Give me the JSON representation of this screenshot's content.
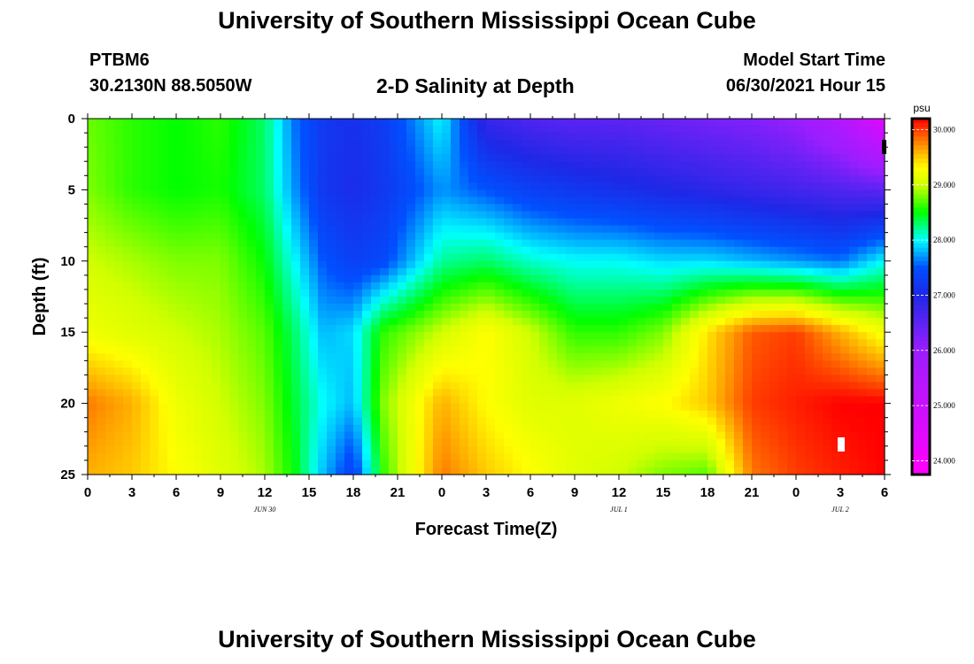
{
  "header": {
    "title": "University of Southern Mississippi Ocean Cube",
    "station_id": "PTBM6",
    "station_coords": "30.2130N  88.5050W",
    "plot_title": "2-D Salinity at Depth",
    "model_start_label": "Model Start Time",
    "model_start_value": "06/30/2021 Hour 15"
  },
  "footer": {
    "title": "University of Southern Mississippi Ocean Cube"
  },
  "chart_data": {
    "type": "heatmap",
    "title": "2-D Salinity at Depth",
    "xlabel": "Forecast Time(Z)",
    "ylabel": "Depth (ft)",
    "x_range_hours": [
      0,
      54
    ],
    "ylim": [
      0,
      25
    ],
    "x_ticks": [
      "0",
      "3",
      "6",
      "9",
      "12",
      "15",
      "18",
      "21",
      "0",
      "3",
      "6",
      "9",
      "12",
      "15",
      "18",
      "21",
      "0",
      "3",
      "6"
    ],
    "y_ticks": [
      "0",
      "5",
      "10",
      "15",
      "20",
      "25"
    ],
    "date_labels": [
      {
        "text": "JUN 30",
        "hour": 12
      },
      {
        "text": "JUL 1",
        "hour": 36
      },
      {
        "text": "JUL 2",
        "hour": 51
      }
    ],
    "colorbar": {
      "unit": "psu",
      "min": 23.75,
      "max": 30.2,
      "ticks": [
        "24.000",
        "25.000",
        "26.000",
        "27.000",
        "28.000",
        "29.000",
        "30.000"
      ],
      "colors": [
        [
          23.8,
          "#ff00ff"
        ],
        [
          26.0,
          "#9b1eff"
        ],
        [
          27.0,
          "#1e28e6"
        ],
        [
          27.5,
          "#0050ff"
        ],
        [
          28.0,
          "#00ffff"
        ],
        [
          28.5,
          "#00ff00"
        ],
        [
          29.0,
          "#d2ff00"
        ],
        [
          29.3,
          "#ffff00"
        ],
        [
          29.7,
          "#ff9600"
        ],
        [
          30.2,
          "#ff0000"
        ]
      ]
    },
    "salinity_grid": {
      "times_h": [
        0,
        3,
        6,
        9,
        12,
        14,
        16,
        18,
        20,
        24,
        27,
        30,
        33,
        36,
        39,
        42,
        45,
        48,
        51,
        54
      ],
      "depths_ft": [
        0,
        5,
        10,
        15,
        20,
        25
      ],
      "values": [
        [
          28.75,
          28.6,
          28.5,
          28.6,
          28.3,
          27.6,
          27.2,
          27.1,
          27.25,
          28.0,
          26.8,
          26.6,
          26.5,
          26.5,
          26.4,
          26.3,
          26.2,
          26.0,
          25.5,
          24.5
        ],
        [
          28.8,
          28.6,
          28.5,
          28.55,
          28.3,
          27.7,
          27.2,
          27.05,
          27.2,
          27.7,
          27.5,
          27.3,
          27.2,
          27.1,
          27.0,
          26.9,
          26.8,
          26.7,
          26.6,
          26.5
        ],
        [
          29.0,
          28.9,
          28.8,
          28.8,
          28.5,
          28.0,
          27.5,
          27.3,
          27.4,
          28.2,
          28.3,
          28.1,
          28.0,
          28.0,
          27.9,
          27.9,
          27.8,
          27.7,
          27.6,
          28.0
        ],
        [
          29.2,
          29.1,
          29.0,
          28.9,
          28.7,
          28.3,
          27.8,
          27.9,
          28.6,
          29.0,
          29.3,
          29.0,
          28.6,
          28.6,
          28.8,
          29.4,
          29.9,
          30.0,
          29.6,
          29.2
        ],
        [
          29.8,
          29.6,
          29.2,
          29.0,
          28.8,
          28.4,
          28.0,
          27.8,
          28.8,
          29.6,
          29.3,
          29.1,
          29.1,
          29.2,
          29.3,
          29.5,
          30.0,
          30.1,
          30.2,
          30.2
        ],
        [
          29.6,
          29.5,
          29.3,
          29.1,
          28.9,
          28.5,
          27.8,
          27.3,
          28.6,
          29.8,
          29.5,
          29.3,
          29.1,
          29.0,
          28.8,
          28.7,
          29.8,
          30.0,
          30.1,
          30.2
        ]
      ]
    }
  }
}
